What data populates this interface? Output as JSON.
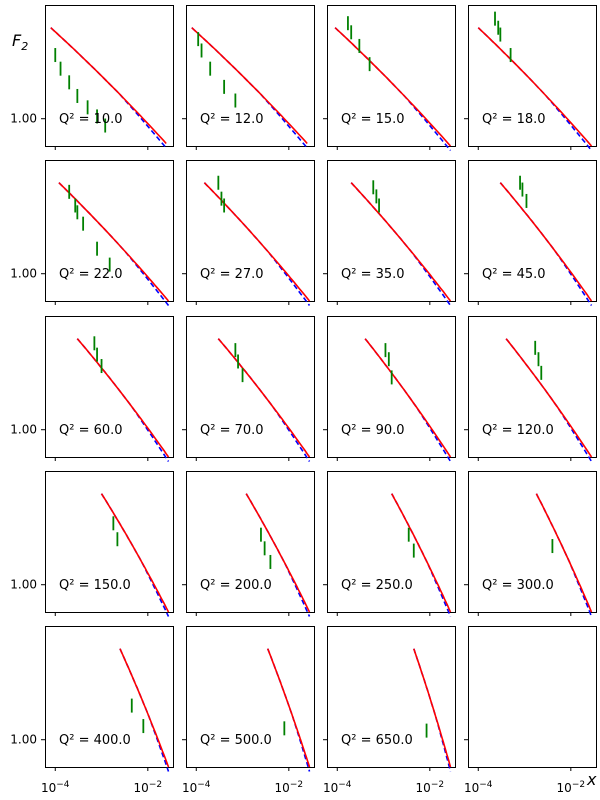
{
  "figure": {
    "ylabel_html": "F",
    "ylabel_sub": "2",
    "xlabel": "x",
    "xticks": [
      {
        "value": 0.0001,
        "base": "10",
        "exp": "−4"
      },
      {
        "value": 0.01,
        "base": "10",
        "exp": "−2"
      }
    ],
    "ytick": {
      "value": 1.0,
      "label": "1.00"
    },
    "colors": {
      "data": "#008000",
      "fit_solid": "#ff0000",
      "fit_dashed": "#0000ff"
    }
  },
  "chart_data": [
    {
      "type": "line",
      "q2_label": "Q² = 10.0",
      "x_range": [
        0.0001,
        0.03
      ],
      "log_x": true,
      "curve": {
        "x_start": 8e-05,
        "x_end": 0.025
      },
      "data_points": [
        [
          0.0001,
          1.28
        ],
        [
          0.00013,
          1.22
        ],
        [
          0.0002,
          1.16
        ],
        [
          0.0003,
          1.1
        ],
        [
          0.0005,
          1.05
        ],
        [
          0.0008,
          1.01
        ],
        [
          0.0012,
          0.97
        ]
      ]
    },
    {
      "type": "line",
      "q2_label": "Q² = 12.0",
      "x_range": [
        0.0001,
        0.03
      ],
      "log_x": true,
      "curve": {
        "x_start": 8e-05,
        "x_end": 0.025
      },
      "data_points": [
        [
          0.00011,
          1.35
        ],
        [
          0.00013,
          1.3
        ],
        [
          0.0002,
          1.22
        ],
        [
          0.0004,
          1.14
        ],
        [
          0.0007,
          1.08
        ]
      ]
    },
    {
      "type": "line",
      "q2_label": "Q² = 15.0",
      "x_range": [
        0.0001,
        0.03
      ],
      "log_x": true,
      "curve": {
        "x_start": 9e-05,
        "x_end": 0.028
      },
      "data_points": [
        [
          0.00017,
          1.42
        ],
        [
          0.0002,
          1.38
        ],
        [
          0.0003,
          1.32
        ],
        [
          0.0005,
          1.24
        ]
      ]
    },
    {
      "type": "line",
      "q2_label": "Q² = 18.0",
      "x_range": [
        0.0001,
        0.03
      ],
      "log_x": true,
      "curve": {
        "x_start": 0.0001,
        "x_end": 0.028
      },
      "data_points": [
        [
          0.00023,
          1.44
        ],
        [
          0.00027,
          1.4
        ],
        [
          0.0003,
          1.37
        ],
        [
          0.0005,
          1.28
        ]
      ]
    },
    {
      "type": "line",
      "q2_label": "Q² = 22.0",
      "x_range": [
        0.0001,
        0.03
      ],
      "log_x": true,
      "curve": {
        "x_start": 0.00012,
        "x_end": 0.028
      },
      "data_points": [
        [
          0.0002,
          1.36
        ],
        [
          0.00027,
          1.3
        ],
        [
          0.0003,
          1.27
        ],
        [
          0.0004,
          1.22
        ],
        [
          0.0008,
          1.11
        ],
        [
          0.0015,
          1.04
        ]
      ]
    },
    {
      "type": "line",
      "q2_label": "Q² = 27.0",
      "x_range": [
        0.0001,
        0.03
      ],
      "log_x": true,
      "curve": {
        "x_start": 0.00015,
        "x_end": 0.028
      },
      "data_points": [
        [
          0.0003,
          1.4
        ],
        [
          0.00035,
          1.33
        ],
        [
          0.0004,
          1.3
        ]
      ]
    },
    {
      "type": "line",
      "q2_label": "Q² = 35.0",
      "x_range": [
        0.0001,
        0.03
      ],
      "log_x": true,
      "curve": {
        "x_start": 0.0002,
        "x_end": 0.028
      },
      "data_points": [
        [
          0.0006,
          1.38
        ],
        [
          0.0007,
          1.34
        ],
        [
          0.0008,
          1.3
        ]
      ]
    },
    {
      "type": "line",
      "q2_label": "Q² = 45.0",
      "x_range": [
        0.0001,
        0.03
      ],
      "log_x": true,
      "curve": {
        "x_start": 0.0003,
        "x_end": 0.028
      },
      "data_points": [
        [
          0.0008,
          1.4
        ],
        [
          0.0009,
          1.37
        ],
        [
          0.0011,
          1.32
        ]
      ]
    },
    {
      "type": "line",
      "q2_label": "Q² = 60.0",
      "x_range": [
        0.0001,
        0.03
      ],
      "log_x": true,
      "curve": {
        "x_start": 0.0003,
        "x_end": 0.028
      },
      "data_points": [
        [
          0.0007,
          1.38
        ],
        [
          0.0008,
          1.33
        ],
        [
          0.001,
          1.28
        ]
      ]
    },
    {
      "type": "line",
      "q2_label": "Q² = 70.0",
      "x_range": [
        0.0001,
        0.03
      ],
      "log_x": true,
      "curve": {
        "x_start": 0.0003,
        "x_end": 0.028
      },
      "data_points": [
        [
          0.0007,
          1.35
        ],
        [
          0.0008,
          1.3
        ],
        [
          0.001,
          1.24
        ]
      ]
    },
    {
      "type": "line",
      "q2_label": "Q² = 90.0",
      "x_range": [
        0.0001,
        0.03
      ],
      "log_x": true,
      "curve": {
        "x_start": 0.0004,
        "x_end": 0.028
      },
      "data_points": [
        [
          0.0011,
          1.35
        ],
        [
          0.0013,
          1.31
        ],
        [
          0.0015,
          1.23
        ]
      ]
    },
    {
      "type": "line",
      "q2_label": "Q² = 120.0",
      "x_range": [
        0.0001,
        0.03
      ],
      "log_x": true,
      "curve": {
        "x_start": 0.0004,
        "x_end": 0.028
      },
      "data_points": [
        [
          0.0017,
          1.36
        ],
        [
          0.002,
          1.31
        ],
        [
          0.0023,
          1.25
        ]
      ]
    },
    {
      "type": "line",
      "q2_label": "Q² = 150.0",
      "x_range": [
        0.0001,
        0.03
      ],
      "log_x": true,
      "curve": {
        "x_start": 0.001,
        "x_end": 0.028
      },
      "data_points": [
        [
          0.0018,
          1.27
        ],
        [
          0.0022,
          1.2
        ]
      ]
    },
    {
      "type": "line",
      "q2_label": "Q² = 200.0",
      "x_range": [
        0.0001,
        0.03
      ],
      "log_x": true,
      "curve": {
        "x_start": 0.0012,
        "x_end": 0.028
      },
      "data_points": [
        [
          0.0025,
          1.22
        ],
        [
          0.003,
          1.16
        ],
        [
          0.004,
          1.1
        ]
      ]
    },
    {
      "type": "line",
      "q2_label": "Q² = 250.0",
      "x_range": [
        0.0001,
        0.03
      ],
      "log_x": true,
      "curve": {
        "x_start": 0.0015,
        "x_end": 0.028
      },
      "data_points": [
        [
          0.0035,
          1.22
        ],
        [
          0.0045,
          1.15
        ]
      ]
    },
    {
      "type": "line",
      "q2_label": "Q² = 300.0",
      "x_range": [
        0.0001,
        0.03
      ],
      "log_x": true,
      "curve": {
        "x_start": 0.0018,
        "x_end": 0.028
      },
      "data_points": [
        [
          0.004,
          1.17
        ]
      ]
    },
    {
      "type": "line",
      "q2_label": "Q² = 400.0",
      "x_range": [
        0.0001,
        0.03
      ],
      "log_x": true,
      "curve": {
        "x_start": 0.0025,
        "x_end": 0.028
      },
      "data_points": [
        [
          0.0045,
          1.15
        ],
        [
          0.008,
          1.06
        ]
      ]
    },
    {
      "type": "line",
      "q2_label": "Q² = 500.0",
      "x_range": [
        0.0001,
        0.03
      ],
      "log_x": true,
      "curve": {
        "x_start": 0.0035,
        "x_end": 0.028
      },
      "data_points": [
        [
          0.008,
          1.05
        ]
      ]
    },
    {
      "type": "line",
      "q2_label": "Q² = 650.0",
      "x_range": [
        0.0001,
        0.03
      ],
      "log_x": true,
      "curve": {
        "x_start": 0.0045,
        "x_end": 0.028
      },
      "data_points": [
        [
          0.0085,
          1.04
        ]
      ]
    }
  ]
}
